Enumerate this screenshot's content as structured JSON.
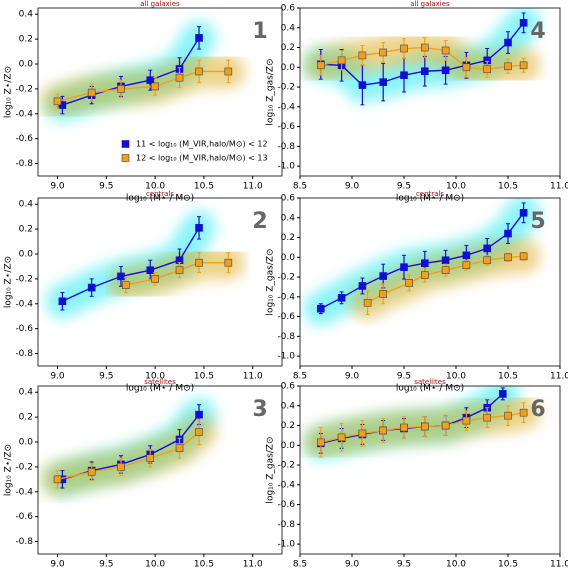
{
  "chart_data": [
    {
      "type": "line",
      "title": "all galaxies",
      "annotation": "1",
      "x_label": "log₁₀ (M⋆ / M⊙)",
      "y_label": "log₁₀ Z⋆/Z⊙",
      "xlim": [
        8.8,
        11.3
      ],
      "xticks": [
        {
          "value": 9,
          "label": "9.0"
        },
        9.5,
        {
          "value": 10,
          "label": "10.0"
        },
        10.5,
        {
          "value": 11,
          "label": "11.0"
        }
      ],
      "ylim": [
        -0.9,
        0.45
      ],
      "yticks": [
        -0.8,
        -0.6,
        -0.4,
        -0.2,
        {
          "value": 0,
          "label": "0.0"
        },
        0.2,
        0.4
      ],
      "legend": "lower right",
      "series": [
        {
          "name": "11 < log₁₀ (M_VIR,halo/M⊙) < 12",
          "color": "#1010d0",
          "x": [
            9.05,
            9.35,
            9.65,
            9.95,
            10.25,
            10.45
          ],
          "values": [
            -0.33,
            -0.25,
            -0.18,
            -0.13,
            -0.04,
            0.21
          ],
          "errors": [
            0.07,
            0.07,
            0.08,
            0.08,
            0.09,
            0.09
          ]
        },
        {
          "name": "12 < log₁₀ (M_VIR,halo/M⊙) < 13",
          "color": "#f0a020",
          "x": [
            9.0,
            9.35,
            9.65,
            10.0,
            10.25,
            10.45,
            10.75
          ],
          "values": [
            -0.3,
            -0.23,
            -0.2,
            -0.18,
            -0.11,
            -0.06,
            -0.06
          ],
          "errors": [
            0.06,
            0.07,
            0.07,
            0.07,
            0.08,
            0.09,
            0.09
          ]
        }
      ]
    },
    {
      "type": "line",
      "title": "all galaxies",
      "annotation": "4",
      "x_label": "log₁₀ (M⋆ / M⊙)",
      "y_label": "log₁₀ Z_gas/Z⊙",
      "xlim": [
        8.5,
        11.0
      ],
      "xticks": [
        8.5,
        {
          "value": 9,
          "label": "9.0"
        },
        9.5,
        {
          "value": 10,
          "label": "10.0"
        },
        10.5,
        {
          "value": 11,
          "label": "11.0"
        }
      ],
      "ylim": [
        -1.1,
        0.6
      ],
      "yticks": [
        {
          "value": -1,
          "label": "-1.0"
        },
        -0.8,
        -0.6,
        -0.4,
        -0.2,
        {
          "value": 0,
          "label": "0.0"
        },
        0.2,
        0.4,
        0.6
      ],
      "series": [
        {
          "color": "#1010d0",
          "x": [
            8.7,
            8.9,
            9.1,
            9.3,
            9.5,
            9.7,
            9.9,
            10.1,
            10.3,
            10.5,
            10.65
          ],
          "values": [
            0.03,
            0.02,
            -0.18,
            -0.15,
            -0.08,
            -0.04,
            -0.03,
            0.02,
            0.07,
            0.25,
            0.45
          ],
          "errors": [
            0.15,
            0.16,
            0.2,
            0.19,
            0.17,
            0.15,
            0.14,
            0.13,
            0.12,
            0.11,
            0.1
          ]
        },
        {
          "color": "#f0a020",
          "x": [
            8.7,
            8.9,
            9.1,
            9.3,
            9.5,
            9.7,
            9.9,
            10.1,
            10.3,
            10.5,
            10.65
          ],
          "values": [
            0.02,
            0.07,
            0.12,
            0.15,
            0.19,
            0.2,
            0.17,
            0.0,
            -0.02,
            0.01,
            0.02
          ],
          "errors": [
            0.1,
            0.1,
            0.1,
            0.1,
            0.1,
            0.1,
            0.1,
            0.1,
            0.08,
            0.07,
            0.07
          ]
        }
      ]
    },
    {
      "type": "line",
      "title": "centrals",
      "annotation": "2",
      "x_label": "log₁₀ (M⋆ / M⊙)",
      "y_label": "log₁₀ Z⋆/Z⊙",
      "xlim": [
        8.8,
        11.3
      ],
      "xticks": [
        {
          "value": 9,
          "label": "9.0"
        },
        9.5,
        {
          "value": 10,
          "label": "10.0"
        },
        10.5,
        {
          "value": 11,
          "label": "11.0"
        }
      ],
      "ylim": [
        -0.9,
        0.45
      ],
      "yticks": [
        -0.8,
        -0.6,
        -0.4,
        -0.2,
        {
          "value": 0,
          "label": "0.0"
        },
        0.2,
        0.4
      ],
      "series": [
        {
          "color": "#1010d0",
          "x": [
            9.05,
            9.35,
            9.65,
            9.95,
            10.25,
            10.45
          ],
          "values": [
            -0.38,
            -0.27,
            -0.18,
            -0.13,
            -0.05,
            0.21
          ],
          "errors": [
            0.07,
            0.07,
            0.08,
            0.08,
            0.09,
            0.09
          ]
        },
        {
          "color": "#f0a020",
          "x": [
            9.7,
            10.0,
            10.25,
            10.45,
            10.75
          ],
          "values": [
            -0.25,
            -0.2,
            -0.13,
            -0.07,
            -0.07
          ],
          "errors": [
            0.06,
            0.05,
            0.06,
            0.08,
            0.08
          ]
        }
      ]
    },
    {
      "type": "line",
      "title": "centrals",
      "annotation": "5",
      "x_label": "log₁₀ (M⋆ / M⊙)",
      "y_label": "log₁₀ Z_gas/Z⊙",
      "xlim": [
        8.5,
        11.0
      ],
      "xticks": [
        8.5,
        {
          "value": 9,
          "label": "9.0"
        },
        9.5,
        {
          "value": 10,
          "label": "10.0"
        },
        10.5,
        {
          "value": 11,
          "label": "11.0"
        }
      ],
      "ylim": [
        -1.1,
        0.6
      ],
      "yticks": [
        {
          "value": -1,
          "label": "-1.0"
        },
        -0.8,
        -0.6,
        -0.4,
        -0.2,
        {
          "value": 0,
          "label": "0.0"
        },
        0.2,
        0.4,
        0.6
      ],
      "series": [
        {
          "color": "#1010d0",
          "x": [
            8.7,
            8.9,
            9.1,
            9.3,
            9.5,
            9.7,
            9.9,
            10.1,
            10.3,
            10.5,
            10.65
          ],
          "values": [
            -0.52,
            -0.41,
            -0.29,
            -0.19,
            -0.1,
            -0.06,
            -0.03,
            0.02,
            0.09,
            0.24,
            0.45
          ],
          "errors": [
            0.05,
            0.06,
            0.08,
            0.12,
            0.12,
            0.12,
            0.1,
            0.1,
            0.1,
            0.1,
            0.1
          ]
        },
        {
          "color": "#f0a020",
          "x": [
            9.15,
            9.3,
            9.55,
            9.7,
            9.9,
            10.1,
            10.3,
            10.5,
            10.65
          ],
          "values": [
            -0.46,
            -0.37,
            -0.26,
            -0.18,
            -0.13,
            -0.08,
            -0.03,
            0.0,
            0.01
          ],
          "errors": [
            0.12,
            0.1,
            0.08,
            0.07,
            0.06,
            0.05,
            0.05,
            0.04,
            0.04
          ]
        }
      ]
    },
    {
      "type": "line",
      "title": "satellites",
      "annotation": "3",
      "x_label": "log₁₀ (M⋆ / M⊙)",
      "y_label": "log₁₀ Z⋆/Z⊙",
      "xlim": [
        8.8,
        11.3
      ],
      "xticks": [
        {
          "value": 9,
          "label": "9.0"
        },
        9.5,
        {
          "value": 10,
          "label": "10.0"
        },
        10.5,
        {
          "value": 11,
          "label": "11.0"
        }
      ],
      "ylim": [
        -0.9,
        0.45
      ],
      "yticks": [
        -0.8,
        -0.6,
        -0.4,
        -0.2,
        {
          "value": 0,
          "label": "0.0"
        },
        0.2,
        0.4
      ],
      "series": [
        {
          "color": "#1010d0",
          "x": [
            9.05,
            9.35,
            9.65,
            9.95,
            10.25,
            10.45
          ],
          "values": [
            -0.3,
            -0.23,
            -0.18,
            -0.1,
            0.02,
            0.22
          ],
          "errors": [
            0.07,
            0.07,
            0.07,
            0.07,
            0.08,
            0.08
          ]
        },
        {
          "color": "#f0a020",
          "x": [
            9.0,
            9.35,
            9.65,
            9.95,
            10.25,
            10.45
          ],
          "values": [
            -0.3,
            -0.24,
            -0.2,
            -0.13,
            -0.05,
            0.08
          ],
          "errors": [
            0.07,
            0.07,
            0.07,
            0.07,
            0.08,
            0.1
          ]
        }
      ]
    },
    {
      "type": "line",
      "title": "satellites",
      "annotation": "6",
      "x_label": "log₁₀ (M⋆ / M⊙)",
      "y_label": "log₁₀ Z_gas/Z⊙",
      "xlim": [
        8.5,
        11.0
      ],
      "xticks": [
        8.5,
        {
          "value": 9,
          "label": "9.0"
        },
        9.5,
        {
          "value": 10,
          "label": "10.0"
        },
        10.5,
        {
          "value": 11,
          "label": "11.0"
        }
      ],
      "ylim": [
        -1.1,
        0.6
      ],
      "yticks": [
        {
          "value": -1,
          "label": "-1.0"
        },
        -0.8,
        -0.6,
        -0.4,
        -0.2,
        {
          "value": 0,
          "label": "0.0"
        },
        0.2,
        0.4,
        0.6
      ],
      "series": [
        {
          "color": "#1010d0",
          "x": [
            8.7,
            8.9,
            9.1,
            9.3,
            9.5,
            9.7,
            9.9,
            10.1,
            10.3,
            10.45
          ],
          "values": [
            0.02,
            0.07,
            0.11,
            0.15,
            0.17,
            0.19,
            0.2,
            0.28,
            0.38,
            0.52
          ],
          "errors": [
            0.1,
            0.1,
            0.1,
            0.1,
            0.1,
            0.1,
            0.1,
            0.1,
            0.08,
            0.06
          ]
        },
        {
          "color": "#f0a020",
          "x": [
            8.7,
            8.9,
            9.1,
            9.3,
            9.5,
            9.7,
            9.9,
            10.1,
            10.3,
            10.5,
            10.65
          ],
          "values": [
            0.03,
            0.08,
            0.12,
            0.15,
            0.18,
            0.19,
            0.2,
            0.25,
            0.28,
            0.3,
            0.33
          ],
          "errors": [
            0.15,
            0.14,
            0.13,
            0.12,
            0.11,
            0.1,
            0.1,
            0.1,
            0.1,
            0.1,
            0.1
          ]
        }
      ]
    }
  ]
}
